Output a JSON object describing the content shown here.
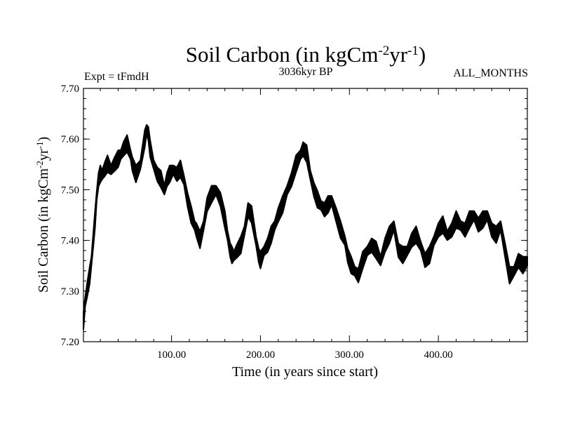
{
  "chart_data": {
    "type": "line",
    "title_main": "Soil Carbon (in kgCm",
    "title_sup1": "-2",
    "title_mid": "yr",
    "title_sup2": "-1",
    "title_end": ")",
    "subtitle_left": "Expt = tFmdH",
    "subtitle_center": "3036kyr BP",
    "subtitle_right": "ALL_MONTHS",
    "xlabel": "Time (in years since start)",
    "ylabel_main": "Soil Carbon (in kgCm",
    "ylabel_sup1": "-2",
    "ylabel_mid": "yr",
    "ylabel_sup2": "-1",
    "ylabel_end": ")",
    "xlim": [
      1,
      500
    ],
    "ylim": [
      7.2,
      7.7
    ],
    "xticks": [
      100,
      200,
      300,
      400
    ],
    "xtick_labels": [
      "100.00",
      "200.00",
      "300.00",
      "400.00"
    ],
    "yticks": [
      7.2,
      7.3,
      7.4,
      7.5,
      7.6,
      7.7
    ],
    "ytick_labels": [
      "7.20",
      "7.30",
      "7.40",
      "7.50",
      "7.60",
      "7.70"
    ],
    "line_color": "#000000",
    "band_half_width": 0.012,
    "series": [
      {
        "name": "Soil Carbon",
        "x": [
          1,
          3,
          5,
          8,
          10,
          12,
          14,
          16,
          18,
          20,
          22,
          25,
          28,
          32,
          36,
          40,
          43,
          46,
          50,
          54,
          56,
          60,
          65,
          68,
          70,
          72,
          74,
          76,
          80,
          84,
          88,
          92,
          95,
          98,
          102,
          106,
          110,
          114,
          118,
          122,
          126,
          128,
          132,
          136,
          140,
          145,
          150,
          155,
          160,
          163,
          166,
          168,
          170,
          174,
          178,
          182,
          186,
          190,
          195,
          198,
          200,
          204,
          208,
          212,
          216,
          220,
          225,
          230,
          235,
          240,
          245,
          248,
          252,
          256,
          260,
          264,
          268,
          272,
          276,
          280,
          285,
          290,
          295,
          298,
          302,
          306,
          310,
          315,
          320,
          325,
          330,
          335,
          340,
          345,
          350,
          355,
          360,
          365,
          370,
          375,
          380,
          385,
          390,
          395,
          400,
          405,
          410,
          415,
          420,
          425,
          430,
          435,
          440,
          445,
          450,
          455,
          460,
          465,
          470,
          475,
          480,
          485,
          490,
          495,
          500
        ],
        "values": [
          7.24,
          7.28,
          7.3,
          7.33,
          7.36,
          7.4,
          7.44,
          7.49,
          7.52,
          7.53,
          7.53,
          7.54,
          7.55,
          7.54,
          7.55,
          7.56,
          7.57,
          7.58,
          7.59,
          7.57,
          7.55,
          7.53,
          7.55,
          7.58,
          7.6,
          7.62,
          7.61,
          7.58,
          7.55,
          7.53,
          7.52,
          7.5,
          7.52,
          7.53,
          7.54,
          7.53,
          7.54,
          7.52,
          7.48,
          7.45,
          7.43,
          7.42,
          7.4,
          7.43,
          7.47,
          7.49,
          7.5,
          7.48,
          7.44,
          7.41,
          7.38,
          7.37,
          7.37,
          7.38,
          7.39,
          7.42,
          7.46,
          7.45,
          7.4,
          7.37,
          7.36,
          7.38,
          7.39,
          7.41,
          7.43,
          7.45,
          7.47,
          7.5,
          7.52,
          7.55,
          7.57,
          7.58,
          7.57,
          7.53,
          7.5,
          7.48,
          7.47,
          7.46,
          7.47,
          7.48,
          7.45,
          7.42,
          7.4,
          7.37,
          7.35,
          7.34,
          7.33,
          7.36,
          7.38,
          7.39,
          7.38,
          7.36,
          7.39,
          7.41,
          7.43,
          7.38,
          7.37,
          7.38,
          7.4,
          7.41,
          7.39,
          7.36,
          7.37,
          7.4,
          7.42,
          7.43,
          7.41,
          7.42,
          7.44,
          7.43,
          7.42,
          7.44,
          7.45,
          7.43,
          7.44,
          7.45,
          7.42,
          7.41,
          7.43,
          7.38,
          7.33,
          7.34,
          7.36,
          7.35,
          7.36
        ]
      }
    ]
  }
}
